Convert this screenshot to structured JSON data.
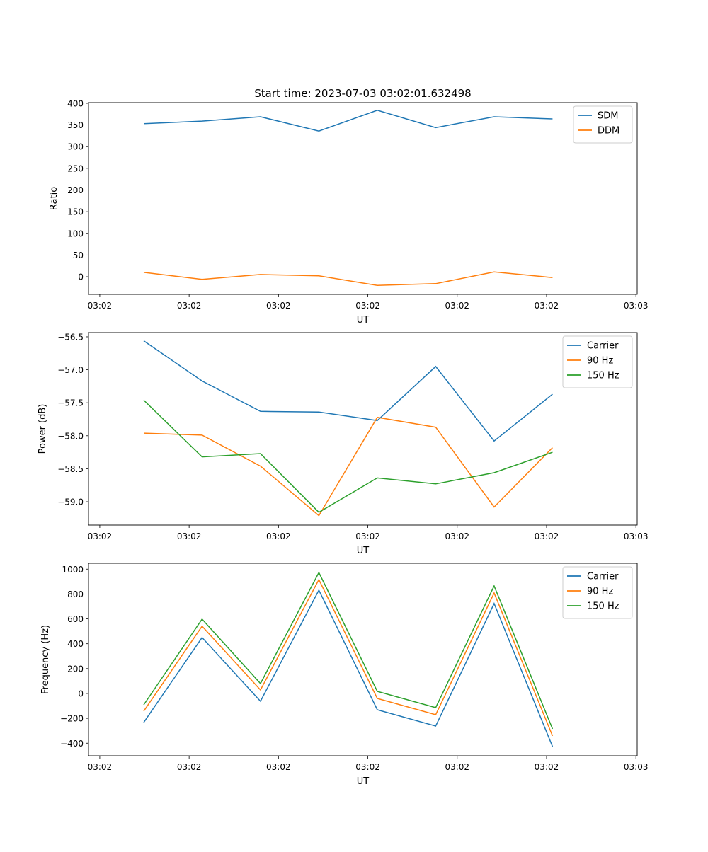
{
  "chart_data": [
    {
      "type": "line",
      "title": "Start time: 2023-07-03 03:02:01.632498",
      "xlabel": "UT",
      "ylabel": "Ratio",
      "x": [
        0,
        1,
        2,
        3,
        4,
        5,
        6,
        7
      ],
      "xlim": [
        -0.945,
        8.45
      ],
      "xticks": [
        -0.752,
        0.778,
        2.308,
        3.838,
        5.368,
        6.898,
        8.428
      ],
      "xtick_labels": [
        "03:02",
        "03:02",
        "03:02",
        "03:02",
        "03:02",
        "03:02",
        "03:03"
      ],
      "ylim": [
        -40.8,
        401.6
      ],
      "yticks": [
        0,
        50,
        100,
        150,
        200,
        250,
        300,
        350,
        400
      ],
      "ytick_labels": [
        "0",
        "50",
        "100",
        "150",
        "200",
        "250",
        "300",
        "350",
        "400"
      ],
      "legend": "top-right",
      "series": [
        {
          "name": "SDM",
          "color": "#1f77b4",
          "values": [
            353,
            359,
            369,
            336,
            384,
            344,
            369,
            364
          ]
        },
        {
          "name": "DDM",
          "color": "#ff7f0e",
          "values": [
            10,
            -6,
            5,
            2,
            -20,
            -16,
            11,
            -2
          ]
        }
      ]
    },
    {
      "type": "line",
      "xlabel": "UT",
      "ylabel": "Power (dB)",
      "x": [
        0,
        1,
        2,
        3,
        4,
        5,
        6,
        7
      ],
      "xlim": [
        -0.945,
        8.45
      ],
      "xticks": [
        -0.752,
        0.778,
        2.308,
        3.838,
        5.368,
        6.898,
        8.428
      ],
      "xtick_labels": [
        "03:02",
        "03:02",
        "03:02",
        "03:02",
        "03:02",
        "03:02",
        "03:03"
      ],
      "ylim": [
        -59.354,
        -56.436
      ],
      "yticks": [
        -59.0,
        -58.5,
        -58.0,
        -57.5,
        -57.0,
        -56.5
      ],
      "ytick_labels": [
        "−59.0",
        "−58.5",
        "−58.0",
        "−57.5",
        "−57.0",
        "−56.5"
      ],
      "legend": "top-right",
      "series": [
        {
          "name": "Carrier",
          "color": "#1f77b4",
          "values": [
            -56.56,
            -57.17,
            -57.63,
            -57.64,
            -57.77,
            -56.95,
            -58.08,
            -57.37
          ]
        },
        {
          "name": "90 Hz",
          "color": "#ff7f0e",
          "values": [
            -57.96,
            -57.99,
            -58.46,
            -59.21,
            -57.72,
            -57.87,
            -59.08,
            -58.18
          ]
        },
        {
          "name": "150 Hz",
          "color": "#2ca02c",
          "values": [
            -57.46,
            -58.32,
            -58.27,
            -59.16,
            -58.64,
            -58.73,
            -58.56,
            -58.25
          ]
        }
      ]
    },
    {
      "type": "line",
      "xlabel": "UT",
      "ylabel": "Frequency (Hz)",
      "x": [
        0,
        1,
        2,
        3,
        4,
        5,
        6,
        7
      ],
      "xlim": [
        -0.945,
        8.45
      ],
      "xticks": [
        -0.752,
        0.778,
        2.308,
        3.838,
        5.368,
        6.898,
        8.428
      ],
      "xtick_labels": [
        "03:02",
        "03:02",
        "03:02",
        "03:02",
        "03:02",
        "03:02",
        "03:03"
      ],
      "ylim": [
        -501,
        1047
      ],
      "yticks": [
        -400,
        -200,
        0,
        200,
        400,
        600,
        800,
        1000
      ],
      "ytick_labels": [
        "−400",
        "−200",
        "0",
        "200",
        "400",
        "600",
        "800",
        "1000"
      ],
      "legend": "top-right",
      "series": [
        {
          "name": "Carrier",
          "color": "#1f77b4",
          "values": [
            -233,
            450,
            -63,
            831,
            -131,
            -262,
            723,
            -427
          ]
        },
        {
          "name": "90 Hz",
          "color": "#ff7f0e",
          "values": [
            -142,
            541,
            28,
            916,
            -40,
            -171,
            808,
            -341
          ]
        },
        {
          "name": "150 Hz",
          "color": "#2ca02c",
          "values": [
            -91,
            598,
            80,
            973,
            17,
            -114,
            865,
            -285
          ]
        }
      ]
    }
  ]
}
